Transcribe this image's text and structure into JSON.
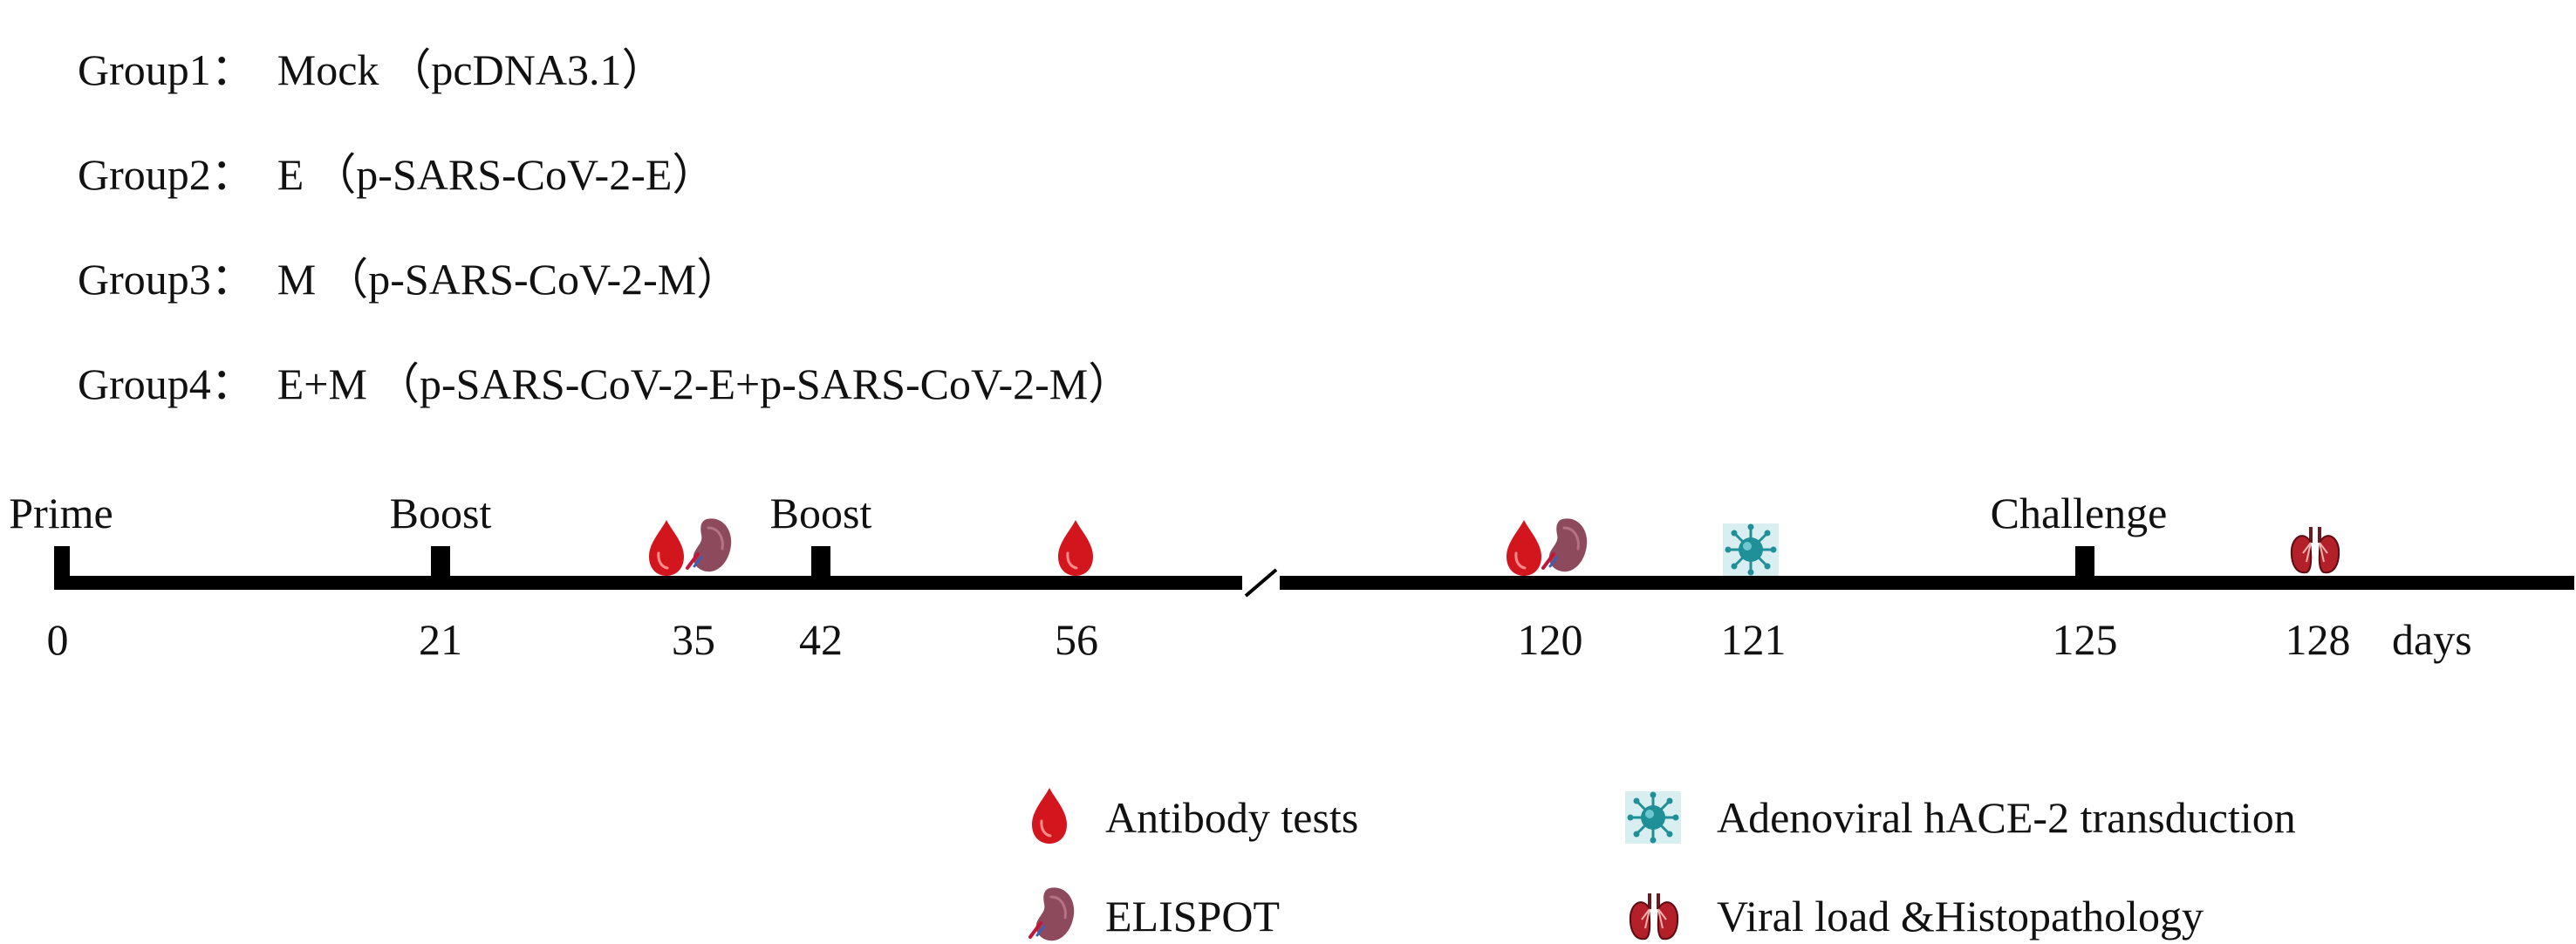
{
  "groups": [
    {
      "label": "Group1：",
      "name": "Mock",
      "plasmid": "（pcDNA3.1）"
    },
    {
      "label": "Group2：",
      "name": "E",
      "plasmid": "（p-SARS-CoV-2-E）"
    },
    {
      "label": "Group3：",
      "name": "M",
      "plasmid": "（p-SARS-CoV-2-M）"
    },
    {
      "label": "Group4：",
      "name": "E+M",
      "plasmid": "（p-SARS-CoV-2-E+p-SARS-CoV-2-M）"
    }
  ],
  "timeline": {
    "unit": "days",
    "events": [
      {
        "day": "0",
        "label": "Prime"
      },
      {
        "day": "21",
        "label": "Boost"
      },
      {
        "day": "35",
        "markers": [
          "blood-drop-icon",
          "spleen-icon"
        ]
      },
      {
        "day": "42",
        "label": "Boost"
      },
      {
        "day": "56",
        "markers": [
          "blood-drop-icon"
        ]
      },
      {
        "day": "120",
        "markers": [
          "blood-drop-icon",
          "spleen-icon"
        ]
      },
      {
        "day": "121",
        "markers": [
          "virus-icon"
        ]
      },
      {
        "day": "125",
        "label": "Challenge"
      },
      {
        "day": "128",
        "markers": [
          "lungs-icon"
        ]
      }
    ]
  },
  "legend": {
    "antibody": {
      "icon": "blood-drop-icon",
      "label": "Antibody tests"
    },
    "elispot": {
      "icon": "spleen-icon",
      "label": "ELISPOT"
    },
    "adenoviral": {
      "icon": "virus-icon",
      "label": "Adenoviral hACE-2 transduction"
    },
    "viral_load": {
      "icon": "lungs-icon",
      "label": "Viral load &Histopathology"
    }
  },
  "colors": {
    "blood": "#d3161d",
    "spleen": "#8c4a5c",
    "virus": "#1f8f98",
    "lungs": "#b3202a",
    "axis": "#000000"
  }
}
